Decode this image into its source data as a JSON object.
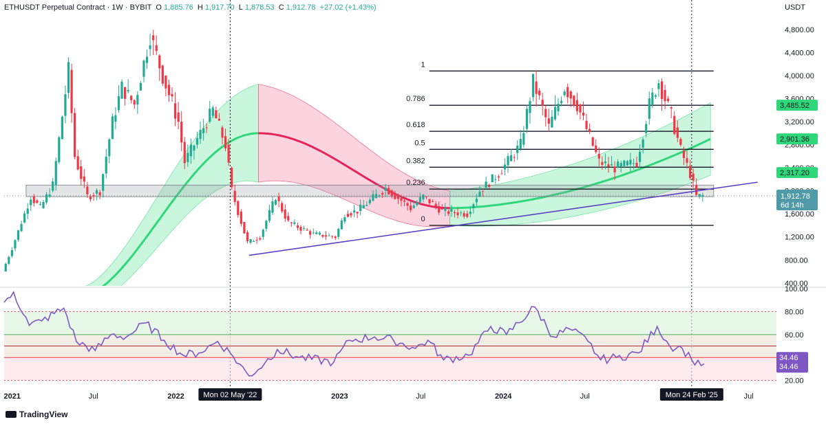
{
  "header": {
    "symbol": "ETHUSDT Perpetual Contract · 1W · BYBIT",
    "o_label": "O",
    "o": "1,885.76",
    "h_label": "H",
    "h": "1,917.70",
    "l_label": "L",
    "l": "1,878.53",
    "c_label": "C",
    "c": "1,912.78",
    "change": "+27.02 (+1.43%)"
  },
  "branding": {
    "name": "TradingView"
  },
  "chart_data": [
    {
      "type": "candlestick",
      "title": "ETHUSDT Perpetual Contract · 1W · BYBIT",
      "y_unit_label": "USDT",
      "ylim": [
        350,
        5050
      ],
      "y_ticks": [
        "4,800.00",
        "4,400.00",
        "4,000.00",
        "3,600.00",
        "3,200.00",
        "2,800.00",
        "2,400.00",
        "2,000.00",
        "1,600.00",
        "1,200.00",
        "800.00",
        "400.00"
      ],
      "y_tick_values": [
        4800,
        4400,
        4000,
        3600,
        3200,
        2800,
        2400,
        2000,
        1600,
        1200,
        800,
        400
      ],
      "x_ticks": [
        {
          "label": "2021",
          "date": "2021-01-01"
        },
        {
          "label": "Jul",
          "date": "2021-07-01"
        },
        {
          "label": "2022",
          "date": "2022-01-01"
        },
        {
          "label": "2023",
          "date": "2023-01-01"
        },
        {
          "label": "Jul",
          "date": "2023-07-01"
        },
        {
          "label": "2024",
          "date": "2024-01-01"
        },
        {
          "label": "Jul",
          "date": "2024-07-01"
        },
        {
          "label": "Jul",
          "date": "2025-07-01"
        }
      ],
      "x_range": [
        "2020-12-14",
        "2025-09-01"
      ],
      "price_path": [
        [
          "2020-12-14",
          600
        ],
        [
          "2021-01-04",
          1000
        ],
        [
          "2021-02-15",
          1900
        ],
        [
          "2021-03-08",
          1700
        ],
        [
          "2021-04-05",
          2100
        ],
        [
          "2021-05-10",
          4100
        ],
        [
          "2021-05-24",
          2600
        ],
        [
          "2021-06-21",
          1900
        ],
        [
          "2021-07-19",
          2000
        ],
        [
          "2021-08-16",
          3200
        ],
        [
          "2021-09-06",
          3800
        ],
        [
          "2021-10-04",
          3500
        ],
        [
          "2021-11-08",
          4700
        ],
        [
          "2021-12-06",
          4000
        ],
        [
          "2022-01-10",
          3200
        ],
        [
          "2022-01-24",
          2500
        ],
        [
          "2022-03-28",
          3400
        ],
        [
          "2022-04-25",
          2800
        ],
        [
          "2022-05-09",
          2000
        ],
        [
          "2022-06-13",
          1100
        ],
        [
          "2022-07-11",
          1200
        ],
        [
          "2022-08-15",
          1900
        ],
        [
          "2022-09-12",
          1450
        ],
        [
          "2022-11-07",
          1250
        ],
        [
          "2022-12-26",
          1200
        ],
        [
          "2023-01-16",
          1600
        ],
        [
          "2023-02-13",
          1650
        ],
        [
          "2023-04-17",
          2050
        ],
        [
          "2023-06-12",
          1700
        ],
        [
          "2023-07-10",
          1900
        ],
        [
          "2023-08-21",
          1650
        ],
        [
          "2023-10-16",
          1600
        ],
        [
          "2023-11-13",
          2000
        ],
        [
          "2023-12-25",
          2300
        ],
        [
          "2024-02-12",
          2800
        ],
        [
          "2024-03-11",
          3900
        ],
        [
          "2024-04-15",
          3100
        ],
        [
          "2024-05-20",
          3800
        ],
        [
          "2024-06-17",
          3500
        ],
        [
          "2024-08-05",
          2500
        ],
        [
          "2024-09-09",
          2400
        ],
        [
          "2024-10-28",
          2500
        ],
        [
          "2024-11-25",
          3500
        ],
        [
          "2024-12-16",
          3900
        ],
        [
          "2025-01-13",
          3300
        ],
        [
          "2025-02-03",
          2700
        ],
        [
          "2025-02-24",
          2300
        ],
        [
          "2025-03-10",
          1900
        ],
        [
          "2025-03-24",
          1912.78
        ]
      ],
      "last_price": "1,912.78",
      "countdown": "6d 14h",
      "price_labels": [
        {
          "text": "3,485.52",
          "value": 3485.52
        },
        {
          "text": "2,901.36",
          "value": 2901.36
        },
        {
          "text": "2,317.20",
          "value": 2317.2
        }
      ],
      "fibonacci": {
        "levels": [
          {
            "label": "1",
            "value": 4080
          },
          {
            "label": "0.786",
            "value": 3485.52
          },
          {
            "label": "0.618",
            "value": 3033
          },
          {
            "label": "0.5",
            "value": 2720
          },
          {
            "label": "0.382",
            "value": 2410
          },
          {
            "label": "0.236",
            "value": 2030
          },
          {
            "label": "0",
            "value": 1400
          }
        ],
        "start": "2023-07-20",
        "end": "2025-04-14"
      },
      "support_zone": {
        "from": "2021-02-01",
        "to": "2025-04-14",
        "low": 1900,
        "high": 2100
      },
      "trendline": {
        "from": [
          "2022-06-13",
          880
        ],
        "to": [
          "2025-07-21",
          2150
        ]
      },
      "band_segments": [
        {
          "color": "green",
          "from": "2021-06-14",
          "to": "2022-07-04",
          "mid": [
            [
              560,
              95
            ],
            [
              900,
              3000
            ],
            [
              2800,
              3800
            ]
          ]
        },
        {
          "color": "pink",
          "from": "2022-07-04",
          "to": "2023-09-04"
        },
        {
          "color": "green",
          "from": "2023-09-04",
          "to": "2025-04-07"
        }
      ],
      "vertical_markers": [
        {
          "label": "Mon 02 May '22",
          "date": "2022-05-02"
        },
        {
          "label": "Mon 24 Feb '25",
          "date": "2025-02-24"
        }
      ]
    },
    {
      "type": "line",
      "title": "",
      "ylim": [
        15,
        100
      ],
      "y_ticks": [
        "100.00",
        "80.00",
        "60.00",
        "40.00",
        "20.00"
      ],
      "y_tick_values": [
        100,
        80,
        60,
        40,
        20
      ],
      "levels": [
        80,
        60,
        50,
        40,
        20
      ],
      "current": "34.46",
      "current_label_2": "34.46",
      "series": [
        {
          "points": [
            [
              "2020-12-14",
              88
            ],
            [
              "2021-01-04",
              97
            ],
            [
              "2021-02-08",
              68
            ],
            [
              "2021-03-08",
              72
            ],
            [
              "2021-04-26",
              83
            ],
            [
              "2021-05-24",
              54
            ],
            [
              "2021-07-05",
              46
            ],
            [
              "2021-08-09",
              60
            ],
            [
              "2021-09-13",
              58
            ],
            [
              "2021-10-25",
              70
            ],
            [
              "2021-12-06",
              55
            ],
            [
              "2022-01-17",
              42
            ],
            [
              "2022-02-21",
              44
            ],
            [
              "2022-04-04",
              54
            ],
            [
              "2022-05-02",
              44
            ],
            [
              "2022-06-13",
              24
            ],
            [
              "2022-07-18",
              35
            ],
            [
              "2022-08-15",
              47
            ],
            [
              "2022-10-03",
              40
            ],
            [
              "2022-12-19",
              36
            ],
            [
              "2023-01-23",
              55
            ],
            [
              "2023-03-20",
              58
            ],
            [
              "2023-05-01",
              55
            ],
            [
              "2023-06-19",
              48
            ],
            [
              "2023-07-17",
              55
            ],
            [
              "2023-08-21",
              38
            ],
            [
              "2023-10-16",
              42
            ],
            [
              "2023-12-04",
              67
            ],
            [
              "2024-01-08",
              60
            ],
            [
              "2024-03-11",
              84
            ],
            [
              "2024-04-22",
              58
            ],
            [
              "2024-05-27",
              65
            ],
            [
              "2024-07-08",
              54
            ],
            [
              "2024-08-05",
              38
            ],
            [
              "2024-09-09",
              40
            ],
            [
              "2024-10-28",
              44
            ],
            [
              "2024-12-09",
              67
            ],
            [
              "2025-01-06",
              50
            ],
            [
              "2025-02-03",
              48
            ],
            [
              "2025-02-24",
              38
            ],
            [
              "2025-03-24",
              34.46
            ]
          ]
        }
      ]
    }
  ]
}
